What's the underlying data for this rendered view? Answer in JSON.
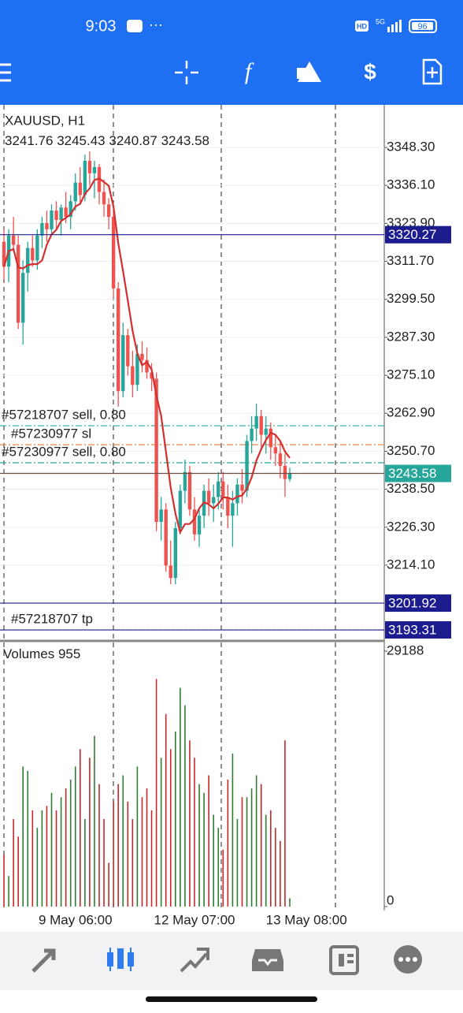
{
  "status": {
    "time": "9:03",
    "hd": "HD",
    "network": "5G",
    "battery": "96"
  },
  "chart_data": {
    "type": "candlestick",
    "title": "XAUUSD, H1",
    "open": [
      3318,
      3310,
      3320,
      3317,
      3292,
      3308,
      3316,
      3312,
      3320,
      3324,
      3322,
      3328,
      3325,
      3329,
      3326,
      3331,
      3337,
      3333,
      3344,
      3340,
      3342,
      3334,
      3330,
      3326,
      3303,
      3270,
      3288,
      3278,
      3272,
      3282,
      3280,
      3276,
      3274,
      3228,
      3232,
      3214,
      3210,
      3226,
      3238,
      3244,
      3232,
      3224,
      3230,
      3238,
      3234,
      3236,
      3241,
      3236,
      3230,
      3234,
      3240,
      3238,
      3254,
      3258,
      3262,
      3256,
      3258,
      3252,
      3250,
      3246,
      3241.76
    ],
    "high": [
      3322,
      3322,
      3326,
      3320,
      3312,
      3318,
      3320,
      3322,
      3326,
      3328,
      3330,
      3331,
      3330,
      3334,
      3333,
      3340,
      3342,
      3346,
      3347,
      3344,
      3343,
      3338,
      3332,
      3328,
      3305,
      3292,
      3290,
      3283,
      3285,
      3286,
      3284,
      3279,
      3276,
      3236,
      3234,
      3222,
      3228,
      3240,
      3248,
      3246,
      3236,
      3232,
      3240,
      3242,
      3240,
      3244,
      3244,
      3240,
      3238,
      3242,
      3245,
      3256,
      3262,
      3266,
      3264,
      3262,
      3260,
      3256,
      3254,
      3250,
      3245.43
    ],
    "low": [
      3306,
      3305,
      3315,
      3290,
      3285,
      3302,
      3310,
      3309,
      3316,
      3318,
      3320,
      3322,
      3320,
      3324,
      3322,
      3328,
      3330,
      3331,
      3336,
      3332,
      3330,
      3326,
      3322,
      3300,
      3265,
      3268,
      3275,
      3268,
      3270,
      3276,
      3274,
      3270,
      3225,
      3222,
      3212,
      3208,
      3208,
      3224,
      3234,
      3230,
      3222,
      3220,
      3226,
      3230,
      3228,
      3232,
      3232,
      3226,
      3220,
      3230,
      3234,
      3236,
      3250,
      3254,
      3252,
      3250,
      3248,
      3246,
      3242,
      3236,
      3240.87
    ],
    "close": [
      3310,
      3320,
      3317,
      3292,
      3308,
      3316,
      3312,
      3320,
      3324,
      3322,
      3328,
      3325,
      3329,
      3326,
      3331,
      3337,
      3333,
      3344,
      3340,
      3342,
      3334,
      3330,
      3326,
      3303,
      3270,
      3288,
      3278,
      3272,
      3282,
      3280,
      3276,
      3274,
      3228,
      3232,
      3214,
      3210,
      3226,
      3238,
      3244,
      3232,
      3224,
      3230,
      3238,
      3234,
      3236,
      3241,
      3236,
      3230,
      3234,
      3240,
      3238,
      3254,
      3258,
      3262,
      3256,
      3258,
      3252,
      3250,
      3246,
      3241.76,
      3243.58
    ],
    "up_color": "#26a69a",
    "down_color": "#ef5350",
    "ma_color": "#d32f2f",
    "ylim": [
      3190.03,
      3361.47
    ],
    "yticks": [
      {
        "value": 3348.3,
        "label": "3348.30"
      },
      {
        "value": 3336.1,
        "label": "3336.10"
      },
      {
        "value": 3323.9,
        "label": "3323.90"
      },
      {
        "value": 3311.7,
        "label": "3311.70"
      },
      {
        "value": 3299.5,
        "label": "3299.50"
      },
      {
        "value": 3287.3,
        "label": "3287.30"
      },
      {
        "value": 3275.1,
        "label": "3275.10"
      },
      {
        "value": 3262.9,
        "label": "3262.90"
      },
      {
        "value": 3250.7,
        "label": "3250.70"
      },
      {
        "value": 3238.5,
        "label": "3238.50"
      },
      {
        "value": 3226.3,
        "label": "3226.30"
      },
      {
        "value": 3214.1,
        "label": "3214.10"
      }
    ],
    "xticks": [
      {
        "value": 15,
        "label": "9 May 06:00"
      },
      {
        "value": 40,
        "label": "12 May 07:00"
      },
      {
        "value": 63.5,
        "label": "13 May 08:00"
      }
    ],
    "levels": [
      {
        "value": 3320.27,
        "color": "#1c1c8f"
      },
      {
        "value": 3201.92,
        "color": "#1c1c8f"
      }
    ],
    "orders": [
      {
        "label": "#57218707 sell, 0.80",
        "value": 3258.9,
        "color": "#26a69a"
      },
      {
        "label": "#57230977 sl",
        "value": 3252.8,
        "color": "#e08a4a"
      },
      {
        "label": "#57230977 sell, 0.80",
        "value": 3247.0,
        "color": "#26a69a"
      },
      {
        "label": "#57218707 tp",
        "value": 3193.31,
        "color": "#d06090"
      }
    ],
    "volume": {
      "title": "Volumes",
      "values": [
        6000,
        3500,
        10000,
        8000,
        16000,
        15500,
        11000,
        9000,
        11000,
        11500,
        13000,
        11000,
        12500,
        13500,
        14500,
        16000,
        18000,
        10000,
        17000,
        19500,
        14000,
        10000,
        5000,
        12000,
        14000,
        15000,
        12000,
        10000,
        16000,
        12500,
        13500,
        11000,
        26000,
        17000,
        22000,
        18000,
        20000,
        25000,
        23000,
        19000,
        17000,
        14000,
        13000,
        15000,
        10500,
        9000,
        6500,
        14500,
        17500,
        10000,
        12500,
        12500,
        13500,
        15000,
        14000,
        10500,
        11000,
        9000,
        7500,
        19000,
        955
      ],
      "ylim": [
        0,
        29188
      ],
      "yticks": [
        29188,
        0
      ],
      "up_color": "#2e7d32",
      "down_color": "#c62828"
    }
  }
}
